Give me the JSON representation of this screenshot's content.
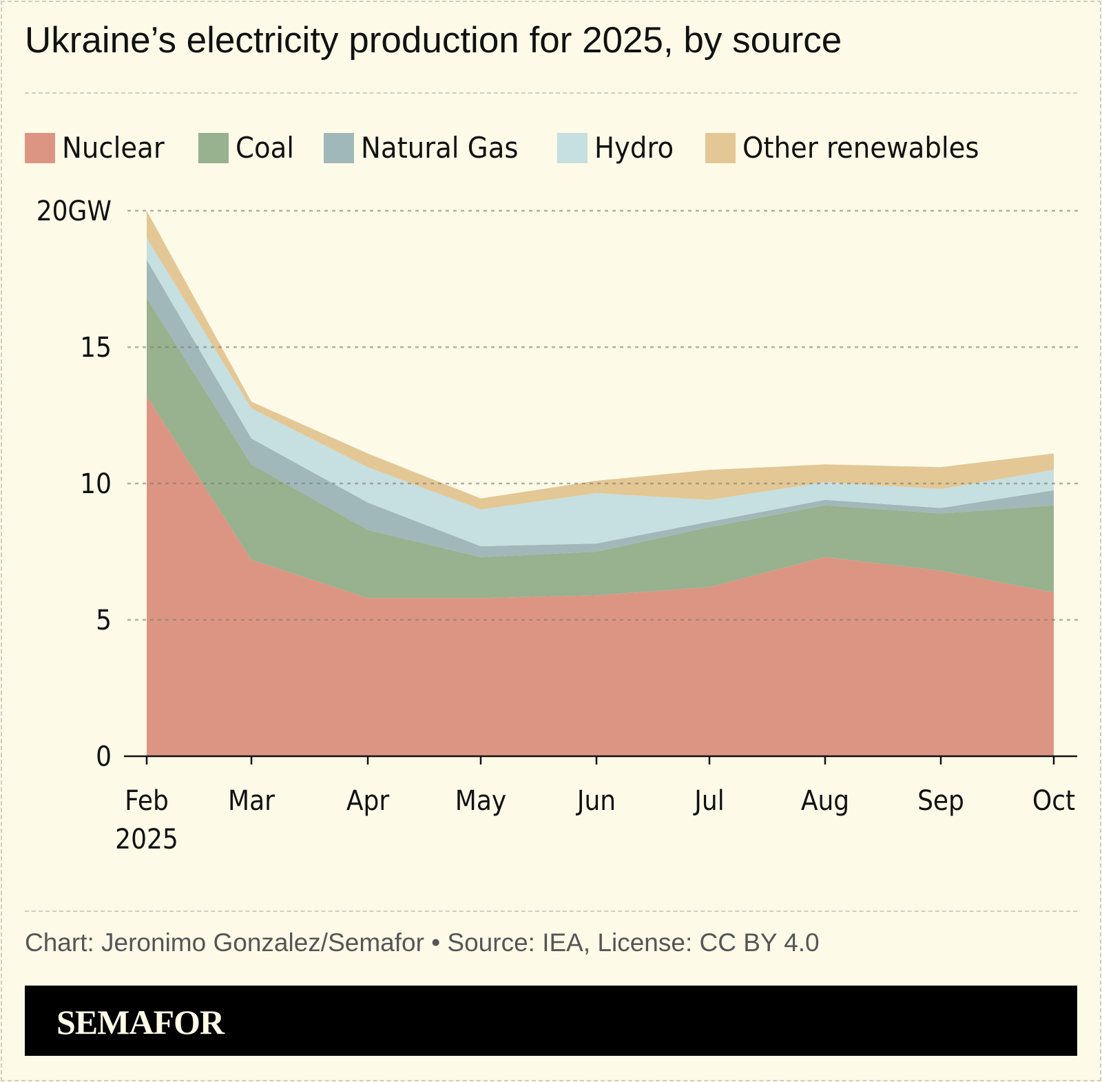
{
  "title": "Ukraine’s electricity production for 2025, by source",
  "source": "Chart: Jeronimo Gonzalez/Semafor • Source: IEA, License: CC BY 4.0",
  "brand": "SEMAFOR",
  "chart_data": {
    "type": "area",
    "stacked": true,
    "categories": [
      "Feb",
      "Mar",
      "Apr",
      "May",
      "Jun",
      "Jul",
      "Aug",
      "Sep",
      "Oct"
    ],
    "x_tick_labels": [
      "Feb\n2025",
      "Mar",
      "Apr",
      "May",
      "Jun",
      "Jul",
      "Aug",
      "Sep",
      "Oct"
    ],
    "y_ticks": [
      0,
      5,
      10,
      15,
      20
    ],
    "y_tick_labels": [
      "0",
      "5",
      "10",
      "15",
      "20GW"
    ],
    "ylim": [
      0,
      20
    ],
    "grid": true,
    "legend_placement": "top-left",
    "series": [
      {
        "name": "Nuclear",
        "color": "#dc9582",
        "values": [
          13.2,
          7.2,
          5.8,
          5.8,
          5.9,
          6.2,
          7.3,
          6.8,
          6.0
        ]
      },
      {
        "name": "Coal",
        "color": "#98b18f",
        "values": [
          3.6,
          3.5,
          2.5,
          1.5,
          1.6,
          2.2,
          1.9,
          2.1,
          3.2
        ]
      },
      {
        "name": "Natural Gas",
        "color": "#a0b8b9",
        "values": [
          1.4,
          0.95,
          1.0,
          0.4,
          0.3,
          0.2,
          0.2,
          0.2,
          0.55
        ]
      },
      {
        "name": "Hydro",
        "color": "#c6dfe0",
        "values": [
          0.8,
          1.1,
          1.3,
          1.35,
          1.85,
          0.8,
          0.65,
          0.7,
          0.75
        ]
      },
      {
        "name": "Other renewables",
        "color": "#e3c795",
        "values": [
          1.0,
          0.25,
          0.5,
          0.4,
          0.45,
          1.1,
          0.65,
          0.8,
          0.6
        ]
      }
    ]
  }
}
